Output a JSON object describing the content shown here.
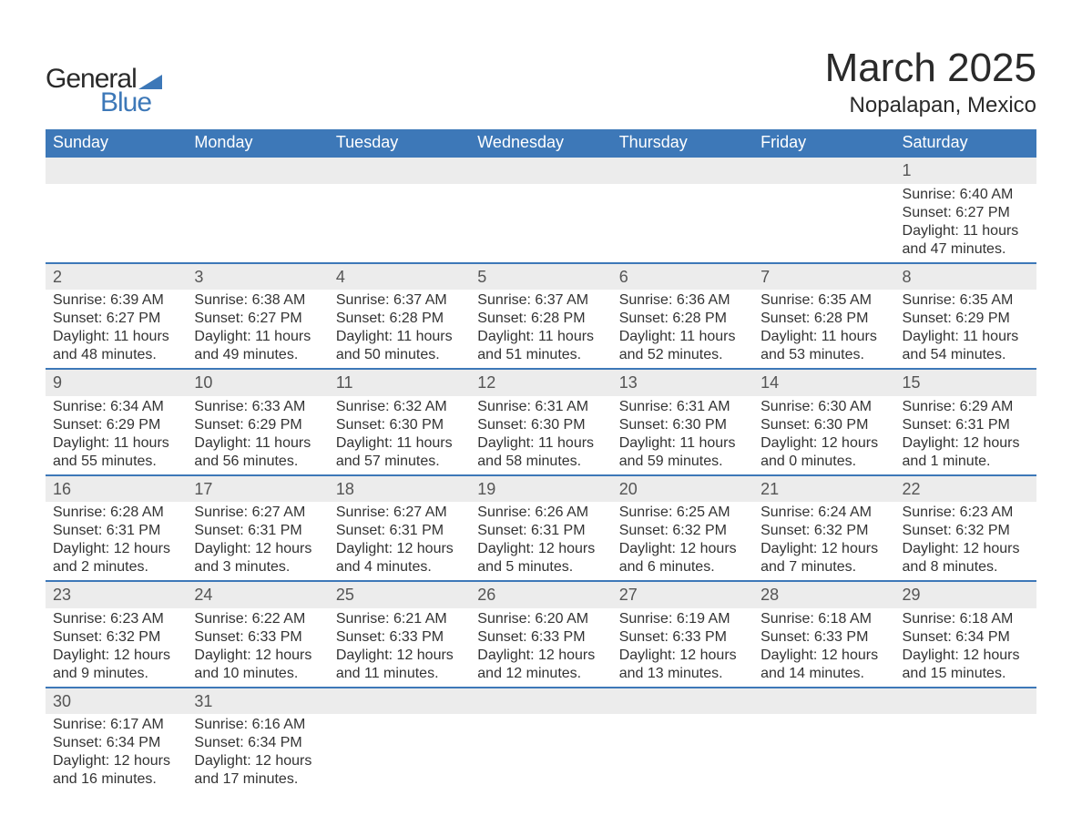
{
  "brand": {
    "text1": "General",
    "text2": "Blue",
    "accent_color": "#3d78b8",
    "text_color": "#2a2a2a"
  },
  "header": {
    "title": "March 2025",
    "location": "Nopalapan, Mexico"
  },
  "style": {
    "header_bg": "#3d78b8",
    "header_fg": "#ffffff",
    "daynum_bg": "#ececec",
    "row_divider": "#3d78b8",
    "body_font_size": 16,
    "title_font_size": 44,
    "location_font_size": 24,
    "th_font_size": 18
  },
  "weekdays": [
    "Sunday",
    "Monday",
    "Tuesday",
    "Wednesday",
    "Thursday",
    "Friday",
    "Saturday"
  ],
  "weeks": [
    [
      null,
      null,
      null,
      null,
      null,
      null,
      {
        "n": "1",
        "sr": "Sunrise: 6:40 AM",
        "ss": "Sunset: 6:27 PM",
        "dl": "Daylight: 11 hours and 47 minutes."
      }
    ],
    [
      {
        "n": "2",
        "sr": "Sunrise: 6:39 AM",
        "ss": "Sunset: 6:27 PM",
        "dl": "Daylight: 11 hours and 48 minutes."
      },
      {
        "n": "3",
        "sr": "Sunrise: 6:38 AM",
        "ss": "Sunset: 6:27 PM",
        "dl": "Daylight: 11 hours and 49 minutes."
      },
      {
        "n": "4",
        "sr": "Sunrise: 6:37 AM",
        "ss": "Sunset: 6:28 PM",
        "dl": "Daylight: 11 hours and 50 minutes."
      },
      {
        "n": "5",
        "sr": "Sunrise: 6:37 AM",
        "ss": "Sunset: 6:28 PM",
        "dl": "Daylight: 11 hours and 51 minutes."
      },
      {
        "n": "6",
        "sr": "Sunrise: 6:36 AM",
        "ss": "Sunset: 6:28 PM",
        "dl": "Daylight: 11 hours and 52 minutes."
      },
      {
        "n": "7",
        "sr": "Sunrise: 6:35 AM",
        "ss": "Sunset: 6:28 PM",
        "dl": "Daylight: 11 hours and 53 minutes."
      },
      {
        "n": "8",
        "sr": "Sunrise: 6:35 AM",
        "ss": "Sunset: 6:29 PM",
        "dl": "Daylight: 11 hours and 54 minutes."
      }
    ],
    [
      {
        "n": "9",
        "sr": "Sunrise: 6:34 AM",
        "ss": "Sunset: 6:29 PM",
        "dl": "Daylight: 11 hours and 55 minutes."
      },
      {
        "n": "10",
        "sr": "Sunrise: 6:33 AM",
        "ss": "Sunset: 6:29 PM",
        "dl": "Daylight: 11 hours and 56 minutes."
      },
      {
        "n": "11",
        "sr": "Sunrise: 6:32 AM",
        "ss": "Sunset: 6:30 PM",
        "dl": "Daylight: 11 hours and 57 minutes."
      },
      {
        "n": "12",
        "sr": "Sunrise: 6:31 AM",
        "ss": "Sunset: 6:30 PM",
        "dl": "Daylight: 11 hours and 58 minutes."
      },
      {
        "n": "13",
        "sr": "Sunrise: 6:31 AM",
        "ss": "Sunset: 6:30 PM",
        "dl": "Daylight: 11 hours and 59 minutes."
      },
      {
        "n": "14",
        "sr": "Sunrise: 6:30 AM",
        "ss": "Sunset: 6:30 PM",
        "dl": "Daylight: 12 hours and 0 minutes."
      },
      {
        "n": "15",
        "sr": "Sunrise: 6:29 AM",
        "ss": "Sunset: 6:31 PM",
        "dl": "Daylight: 12 hours and 1 minute."
      }
    ],
    [
      {
        "n": "16",
        "sr": "Sunrise: 6:28 AM",
        "ss": "Sunset: 6:31 PM",
        "dl": "Daylight: 12 hours and 2 minutes."
      },
      {
        "n": "17",
        "sr": "Sunrise: 6:27 AM",
        "ss": "Sunset: 6:31 PM",
        "dl": "Daylight: 12 hours and 3 minutes."
      },
      {
        "n": "18",
        "sr": "Sunrise: 6:27 AM",
        "ss": "Sunset: 6:31 PM",
        "dl": "Daylight: 12 hours and 4 minutes."
      },
      {
        "n": "19",
        "sr": "Sunrise: 6:26 AM",
        "ss": "Sunset: 6:31 PM",
        "dl": "Daylight: 12 hours and 5 minutes."
      },
      {
        "n": "20",
        "sr": "Sunrise: 6:25 AM",
        "ss": "Sunset: 6:32 PM",
        "dl": "Daylight: 12 hours and 6 minutes."
      },
      {
        "n": "21",
        "sr": "Sunrise: 6:24 AM",
        "ss": "Sunset: 6:32 PM",
        "dl": "Daylight: 12 hours and 7 minutes."
      },
      {
        "n": "22",
        "sr": "Sunrise: 6:23 AM",
        "ss": "Sunset: 6:32 PM",
        "dl": "Daylight: 12 hours and 8 minutes."
      }
    ],
    [
      {
        "n": "23",
        "sr": "Sunrise: 6:23 AM",
        "ss": "Sunset: 6:32 PM",
        "dl": "Daylight: 12 hours and 9 minutes."
      },
      {
        "n": "24",
        "sr": "Sunrise: 6:22 AM",
        "ss": "Sunset: 6:33 PM",
        "dl": "Daylight: 12 hours and 10 minutes."
      },
      {
        "n": "25",
        "sr": "Sunrise: 6:21 AM",
        "ss": "Sunset: 6:33 PM",
        "dl": "Daylight: 12 hours and 11 minutes."
      },
      {
        "n": "26",
        "sr": "Sunrise: 6:20 AM",
        "ss": "Sunset: 6:33 PM",
        "dl": "Daylight: 12 hours and 12 minutes."
      },
      {
        "n": "27",
        "sr": "Sunrise: 6:19 AM",
        "ss": "Sunset: 6:33 PM",
        "dl": "Daylight: 12 hours and 13 minutes."
      },
      {
        "n": "28",
        "sr": "Sunrise: 6:18 AM",
        "ss": "Sunset: 6:33 PM",
        "dl": "Daylight: 12 hours and 14 minutes."
      },
      {
        "n": "29",
        "sr": "Sunrise: 6:18 AM",
        "ss": "Sunset: 6:34 PM",
        "dl": "Daylight: 12 hours and 15 minutes."
      }
    ],
    [
      {
        "n": "30",
        "sr": "Sunrise: 6:17 AM",
        "ss": "Sunset: 6:34 PM",
        "dl": "Daylight: 12 hours and 16 minutes."
      },
      {
        "n": "31",
        "sr": "Sunrise: 6:16 AM",
        "ss": "Sunset: 6:34 PM",
        "dl": "Daylight: 12 hours and 17 minutes."
      },
      null,
      null,
      null,
      null,
      null
    ]
  ]
}
